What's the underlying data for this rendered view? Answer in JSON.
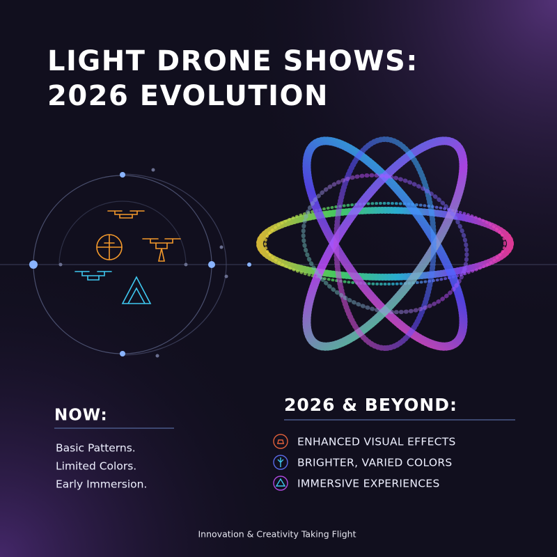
{
  "title": {
    "lines": [
      "LIGHT DRONE SHOWS:",
      "2026 EVOLUTION"
    ]
  },
  "now": {
    "heading": "NOW:",
    "items": [
      "Basic Patterns.",
      "Limited Colors.",
      "Early Immersion."
    ]
  },
  "future": {
    "heading": "2026 & BEYOND:",
    "items": [
      "ENHANCED VISUAL EFFECTS",
      "BRIGHTER, VARIED COLORS",
      "IMMERSIVE EXPERIENCES"
    ]
  },
  "footer": "Innovation & Creativity Taking Flight"
}
